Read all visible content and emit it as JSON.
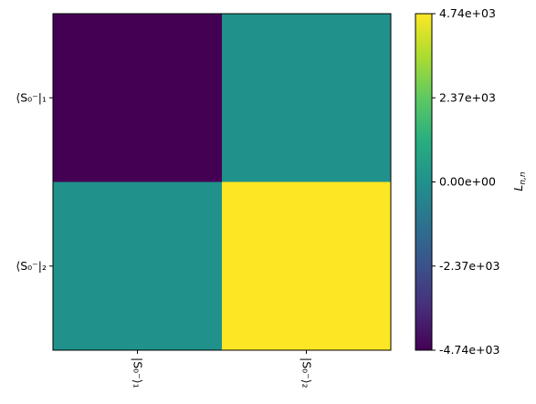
{
  "chart_data": {
    "type": "heatmap",
    "title": "",
    "rows": [
      "⟨S₀⁻|₁",
      "⟨S₀⁻|₂"
    ],
    "cols": [
      "|S₀⁻⟩₁",
      "|S₀⁻⟩₂"
    ],
    "values": [
      [
        -4740,
        0
      ],
      [
        0,
        4740
      ]
    ],
    "colorbar": {
      "label": "L_{n,n}",
      "ticks": [
        4740,
        2370,
        0,
        -2370,
        -4740
      ],
      "tick_labels": [
        "4.74e+03",
        "2.37e+03",
        "0.00e+00",
        "-2.37e+03",
        "-4.74e+03"
      ],
      "range": [
        -4740,
        4740
      ],
      "colormap": "viridis"
    },
    "colors": {
      "low": "#440154",
      "mid": "#21918c",
      "high": "#fde725"
    },
    "grid": false
  }
}
